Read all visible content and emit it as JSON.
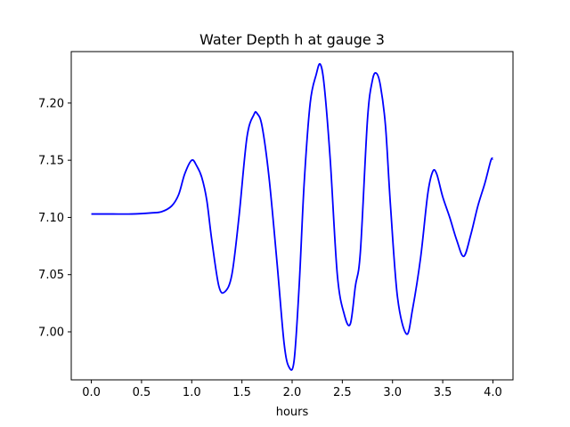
{
  "chart_data": {
    "type": "line",
    "title": "Water Depth h at gauge 3",
    "xlabel": "hours",
    "ylabel": "",
    "xlim": [
      -0.2,
      4.2
    ],
    "ylim": [
      6.958,
      7.245
    ],
    "xticks": [
      0.0,
      0.5,
      1.0,
      1.5,
      2.0,
      2.5,
      3.0,
      3.5,
      4.0
    ],
    "xtick_labels": [
      "0.0",
      "0.5",
      "1.0",
      "1.5",
      "2.0",
      "2.5",
      "3.0",
      "3.5",
      "4.0"
    ],
    "yticks": [
      7.0,
      7.05,
      7.1,
      7.15,
      7.2
    ],
    "ytick_labels": [
      "7.00",
      "7.05",
      "7.10",
      "7.15",
      "7.20"
    ],
    "grid": false,
    "series": [
      {
        "color": "#0000ff",
        "x": [
          0.0,
          0.2,
          0.4,
          0.6,
          0.7,
          0.8,
          0.87,
          0.93,
          1.0,
          1.05,
          1.1,
          1.15,
          1.2,
          1.27,
          1.33,
          1.4,
          1.47,
          1.55,
          1.62,
          1.65,
          1.7,
          1.77,
          1.85,
          1.92,
          1.97,
          2.02,
          2.07,
          2.12,
          2.18,
          2.24,
          2.28,
          2.32,
          2.38,
          2.45,
          2.52,
          2.58,
          2.63,
          2.68,
          2.75,
          2.8,
          2.84,
          2.88,
          2.93,
          2.98,
          3.05,
          3.14,
          3.2,
          3.28,
          3.35,
          3.4,
          3.44,
          3.5,
          3.57,
          3.64,
          3.71,
          3.78,
          3.85,
          3.92,
          3.98,
          4.0
        ],
        "y": [
          7.103,
          7.103,
          7.103,
          7.104,
          7.105,
          7.11,
          7.12,
          7.138,
          7.15,
          7.145,
          7.135,
          7.115,
          7.08,
          7.04,
          7.035,
          7.05,
          7.1,
          7.17,
          7.19,
          7.191,
          7.18,
          7.135,
          7.06,
          6.99,
          6.969,
          6.975,
          7.04,
          7.13,
          7.2,
          7.225,
          7.234,
          7.215,
          7.15,
          7.05,
          7.015,
          7.007,
          7.04,
          7.07,
          7.185,
          7.22,
          7.226,
          7.215,
          7.18,
          7.11,
          7.03,
          6.998,
          7.02,
          7.065,
          7.12,
          7.14,
          7.138,
          7.118,
          7.1,
          7.08,
          7.066,
          7.085,
          7.11,
          7.13,
          7.15,
          7.151
        ]
      }
    ]
  }
}
